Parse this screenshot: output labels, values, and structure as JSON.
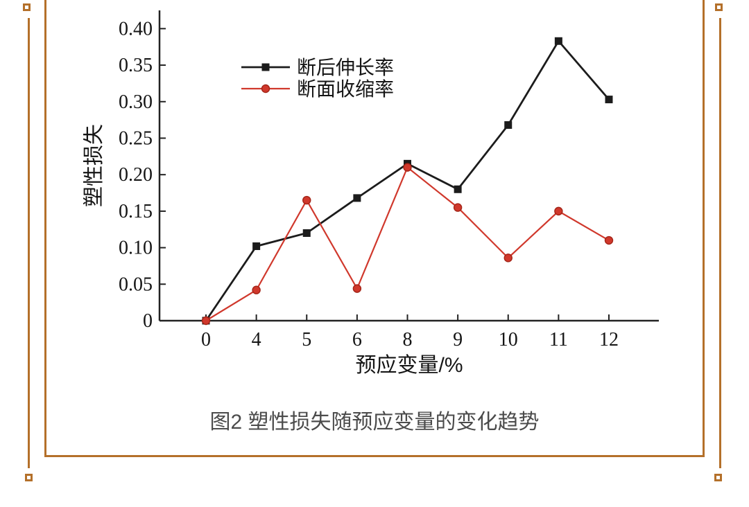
{
  "figure": {
    "caption": "图2 塑性损失随预应变量的变化趋势"
  },
  "frame": {
    "color": "#b4702a"
  },
  "chart_data": {
    "type": "line",
    "title": "",
    "xlabel": "预应变量/%",
    "ylabel": "塑性损失",
    "categories": [
      "0",
      "4",
      "5",
      "6",
      "8",
      "9",
      "10",
      "11",
      "12"
    ],
    "series": [
      {
        "name": "断后伸长率",
        "marker": "square",
        "color": "#1c1c1c",
        "values": [
          0,
          0.102,
          0.12,
          0.168,
          0.215,
          0.18,
          0.268,
          0.383,
          0.303
        ]
      },
      {
        "name": "断面收缩率",
        "marker": "circle",
        "color": "#d0382c",
        "values": [
          0,
          0.042,
          0.165,
          0.044,
          0.21,
          0.155,
          0.086,
          0.15,
          0.11
        ]
      }
    ],
    "yticks": [
      0,
      0.05,
      0.1,
      0.15,
      0.2,
      0.25,
      0.3,
      0.35,
      0.4
    ],
    "ylim": [
      0,
      0.425
    ],
    "grid": false,
    "legend_position": "top-left-inside"
  }
}
